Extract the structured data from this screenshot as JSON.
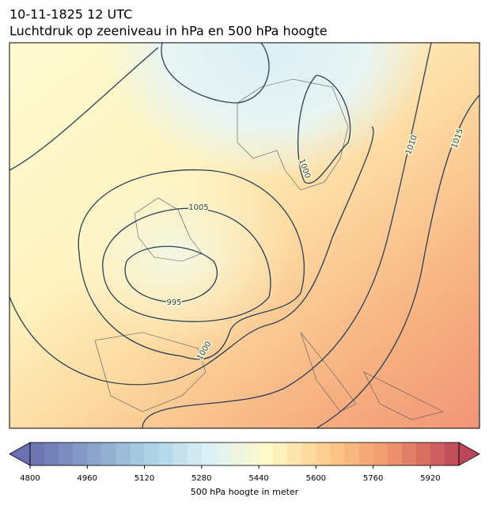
{
  "header": {
    "title": "10-11-1825 12 UTC",
    "subtitle": "Luchtdruk op zeeniveau in hPa en 500 hPa hoogte"
  },
  "map": {
    "isobar_labels": [
      1005,
      995,
      1000,
      1000,
      1010,
      1015
    ]
  },
  "colorbar": {
    "range": [
      4800,
      6000
    ],
    "step": 40,
    "ticks": [
      4800,
      4960,
      5120,
      5280,
      5440,
      5600,
      5760,
      5920
    ],
    "label": "500 hPa hoogte in meter"
  }
}
